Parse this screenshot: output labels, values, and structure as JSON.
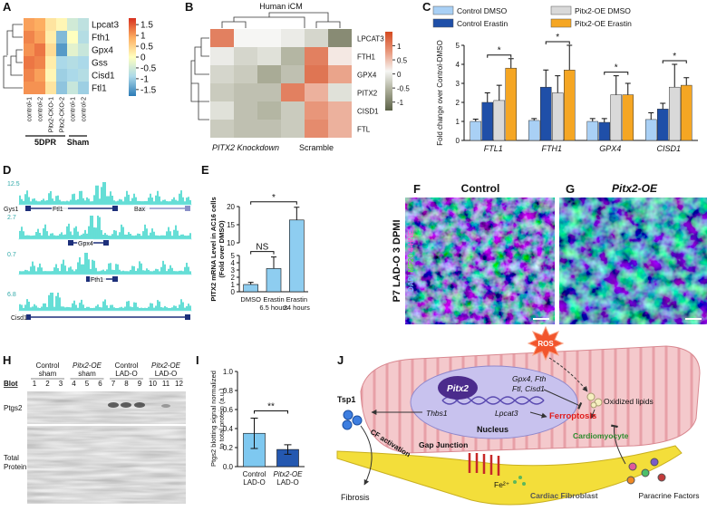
{
  "panels": {
    "A": {
      "label": "A",
      "type": "heatmap",
      "rows": [
        "Lpcat3",
        "Fth1",
        "Gpx4",
        "Gss",
        "Cisd1",
        "Ftl1"
      ],
      "columns": [
        "control-1",
        "control-2",
        "Pitx2-CKO-1",
        "Pitx2-CKO-2",
        "control-1",
        "control-2"
      ],
      "groups": [
        "5DPR",
        "Sham"
      ],
      "values": [
        [
          1.0,
          0.9,
          0.3,
          0.1,
          -0.5,
          -0.7
        ],
        [
          1.2,
          1.0,
          0.2,
          -1.2,
          0.0,
          -0.8
        ],
        [
          1.1,
          1.3,
          0.4,
          -1.5,
          -0.3,
          -0.6
        ],
        [
          1.3,
          1.2,
          0.2,
          -0.9,
          -0.8,
          -0.9
        ],
        [
          1.2,
          1.0,
          0.1,
          -1.0,
          -0.9,
          -0.8
        ],
        [
          1.1,
          1.1,
          0.3,
          -1.1,
          -0.6,
          -1.0
        ]
      ],
      "clim": [
        -1.8,
        1.8
      ],
      "cticks": [
        1.5,
        1,
        0.5,
        0,
        -0.5,
        -1,
        -1.5
      ],
      "colormap": [
        "#2c7bb6",
        "#abd9e9",
        "#ffffbf",
        "#fdae61",
        "#d7301f"
      ]
    },
    "B": {
      "label": "B",
      "type": "heatmap",
      "title": "Human iCM",
      "rows": [
        "LPCAT3",
        "FTH1",
        "GPX4",
        "PITX2",
        "CISD1",
        "FTL"
      ],
      "groups": [
        "PITX2 Knockdown",
        "Scramble"
      ],
      "values": [
        [
          1.0,
          0.1,
          0.1,
          0.0,
          -0.2,
          -0.9
        ],
        [
          0.0,
          -0.2,
          -0.1,
          -0.5,
          1.0,
          0.2
        ],
        [
          -0.2,
          -0.3,
          -0.6,
          -0.4,
          1.1,
          0.7
        ],
        [
          -0.3,
          -0.4,
          -0.4,
          1.0,
          0.6,
          -0.1
        ],
        [
          -0.1,
          -0.4,
          -0.5,
          -0.3,
          0.8,
          0.6
        ],
        [
          -0.3,
          -0.4,
          -0.4,
          -0.3,
          0.9,
          0.6
        ]
      ],
      "clim": [
        -1.3,
        1.5
      ],
      "cticks": [
        1,
        0.5,
        0,
        -0.5,
        -1
      ],
      "colormap": [
        "#5b6147",
        "#a9ab96",
        "#f6f6f4",
        "#e8967a",
        "#d44a20"
      ]
    },
    "C": {
      "label": "C",
      "type": "bar",
      "categories": [
        "FTL1",
        "FTH1",
        "GPX4",
        "CISD1"
      ],
      "series": [
        {
          "name": "Control DMSO",
          "color": "#a9d0f5",
          "values": [
            1.0,
            1.05,
            1.0,
            1.1
          ],
          "errors": [
            0.12,
            0.1,
            0.15,
            0.35
          ]
        },
        {
          "name": "Control Erastin",
          "color": "#1f4fa8",
          "values": [
            2.0,
            2.8,
            0.95,
            1.65
          ],
          "errors": [
            0.5,
            0.9,
            0.2,
            0.3
          ]
        },
        {
          "name": "Pitx2-OE DMSO",
          "color": "#d9d9d9",
          "values": [
            2.1,
            2.5,
            2.4,
            2.8
          ],
          "errors": [
            0.8,
            0.9,
            1.0,
            1.2
          ]
        },
        {
          "name": "Pitx2-OE Erastin",
          "color": "#f5a623",
          "values": [
            3.8,
            3.7,
            2.4,
            2.9
          ],
          "errors": [
            0.5,
            1.3,
            0.6,
            0.4
          ]
        }
      ],
      "ylim": [
        0,
        5
      ],
      "yticks": [
        0,
        1,
        2,
        3,
        4,
        5
      ],
      "ylabel": "Fold change over Control-DMSO",
      "significance": [
        "*",
        "*",
        "*",
        "*"
      ]
    },
    "D": {
      "label": "D",
      "track_scales": [
        12.5,
        2.7,
        0.7,
        6.8
      ],
      "genes": [
        "Gys1",
        "Ftl1",
        "Bax",
        "Gpx4",
        "Fth1",
        "Cisd1"
      ]
    },
    "E": {
      "label": "E",
      "type": "bar",
      "categories": [
        [
          "DMSO"
        ],
        [
          "Erastin",
          "6.5 hours"
        ],
        [
          "Erastin",
          "24 hours"
        ]
      ],
      "values": [
        1,
        3.2,
        16.3
      ],
      "errors": [
        0.3,
        1.6,
        3.5
      ],
      "color": "#8ecdf0",
      "ylim": [
        0,
        20
      ],
      "axis_break": [
        5,
        10
      ],
      "yticks": [
        0,
        1,
        2,
        3,
        4,
        5,
        10,
        15,
        20
      ],
      "ylabel": [
        "PITX2 mRNA Level in AC16 cells",
        "(Fold over DMSO)"
      ],
      "significance": [
        "NS",
        "*"
      ]
    },
    "F": {
      "label": "F",
      "title": "Control",
      "side_label": "P7 LAD-O  3 DPMI",
      "stains": [
        "DAPI",
        "MF20",
        "4-HNE"
      ]
    },
    "G": {
      "label": "G",
      "title": "Pitx2-OE"
    },
    "H": {
      "label": "H",
      "row_title": "Blot",
      "groups": [
        [
          "Control",
          "sham"
        ],
        [
          "Pitx2-OE",
          "sham"
        ],
        [
          "Control",
          "LAD-O"
        ],
        [
          "Pitx2-OE",
          "LAD-O"
        ]
      ],
      "lanes": [
        1,
        2,
        3,
        4,
        5,
        6,
        7,
        8,
        9,
        10,
        11,
        12
      ],
      "band": "Ptgs2",
      "stain": [
        "Total",
        "Protein"
      ]
    },
    "I": {
      "label": "I",
      "type": "bar",
      "categories": [
        [
          "Control",
          "LAD-O"
        ],
        [
          "Pitx2-OE",
          "LAD-O"
        ]
      ],
      "values": [
        0.35,
        0.18
      ],
      "errors": [
        0.16,
        0.05
      ],
      "colors": [
        "#7ec8f0",
        "#2458b0"
      ],
      "ylim": [
        0,
        1
      ],
      "yticks": [
        {
          "value": 0,
          "label": "0.0"
        },
        0.2,
        0.4,
        0.6,
        0.8,
        {
          "value": 1,
          "label": "1.0"
        }
      ],
      "ylabel": [
        "Ptgs2 blotting signal normalized",
        "to total protein (a.u.)"
      ],
      "significance": "**"
    },
    "J": {
      "label": "J",
      "ros": "ROS",
      "oxidized_lipids": "Oxidized lipids",
      "pitx2": "Pitx2",
      "targets": [
        "Gpx4, Fth",
        "Ftl, Cisd1"
      ],
      "thbs1": "Thbs1",
      "lpcat3": "Lpcat3",
      "nucleus": "Nucleus",
      "ferroptosis": "Ferroptosis",
      "cardiomyocyte": "Cardiomyocyte",
      "tsp1": "Tsp1",
      "cf_activation": "CF activation",
      "gap_junction": "Gap Junction",
      "fe": "Fe²⁺",
      "fibrosis": "Fibrosis",
      "fibroblast": "Cardiac Fibroblast",
      "paracrine": "Paracrine Factors"
    }
  }
}
